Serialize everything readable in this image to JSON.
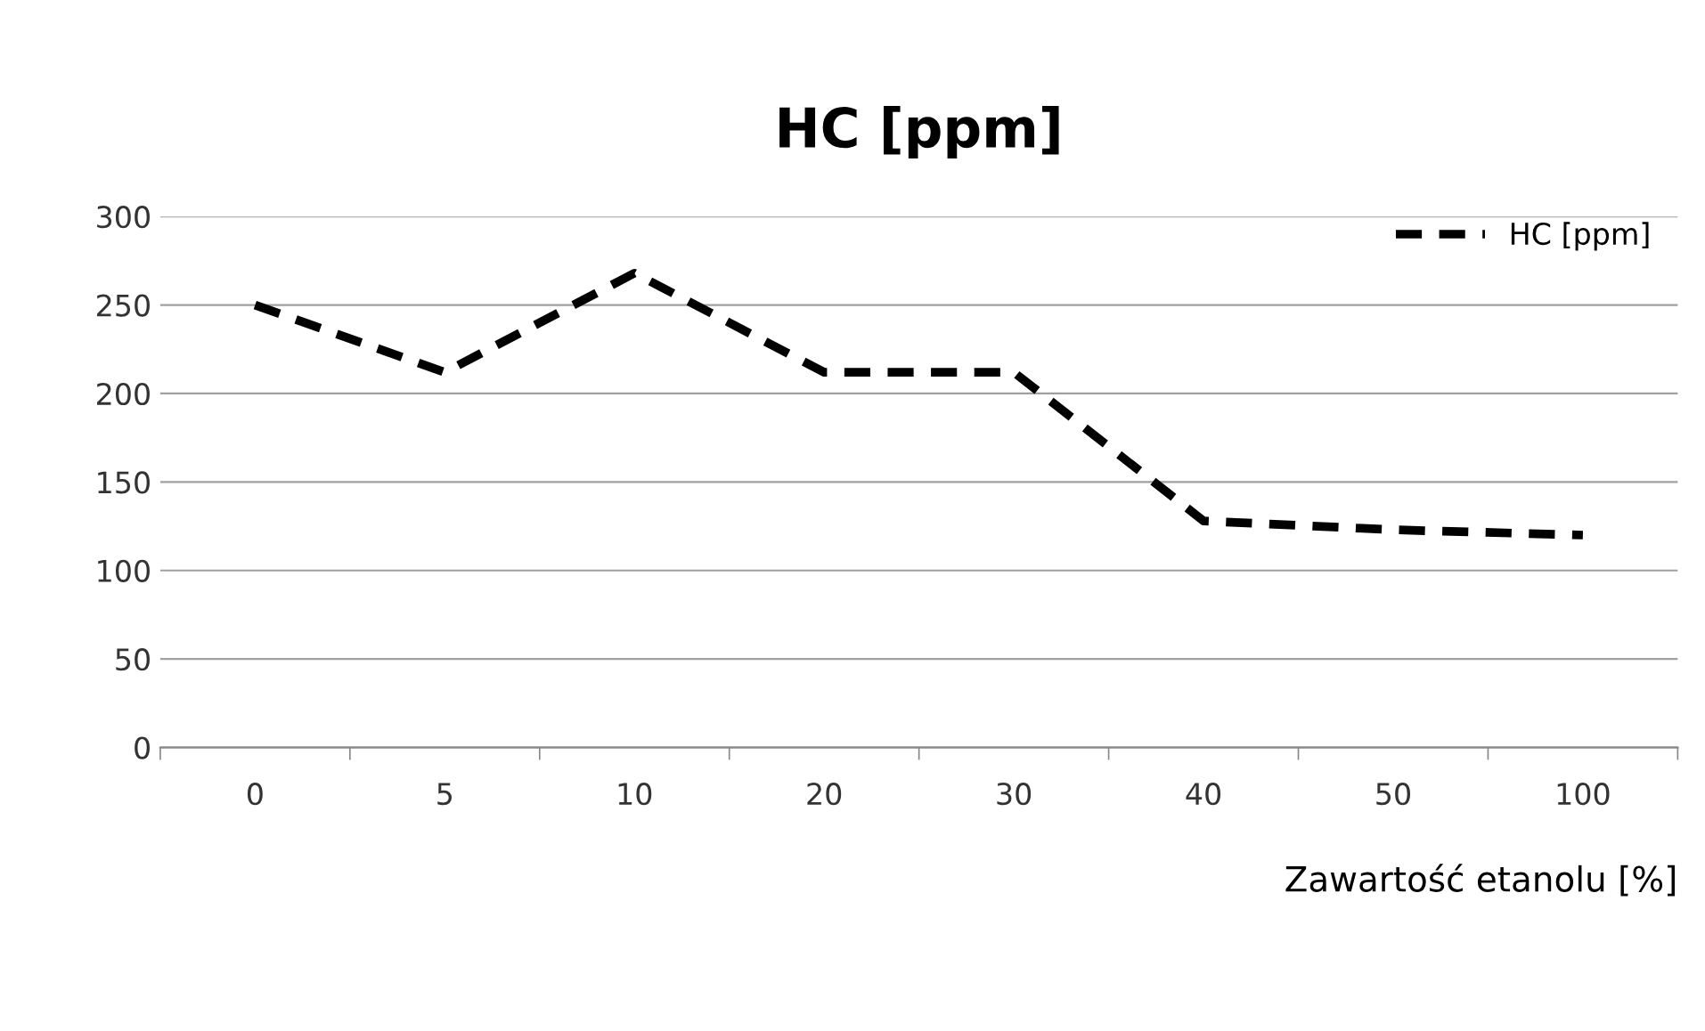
{
  "chart_data": {
    "type": "line",
    "title": "HC [ppm]",
    "xlabel": "Zawartość etanolu [%]",
    "categories": [
      "0",
      "5",
      "10",
      "20",
      "30",
      "40",
      "50",
      "100"
    ],
    "series": [
      {
        "name": "HC [ppm]",
        "color": "#000000",
        "values": [
          250,
          212,
          268,
          212,
          212,
          128,
          123,
          120
        ]
      }
    ],
    "ylim": [
      0,
      300
    ],
    "yticks": [
      0,
      50,
      100,
      150,
      200,
      250,
      300
    ],
    "grid": "y",
    "legend": "top right",
    "line_style": "dashed",
    "marker": "none"
  }
}
